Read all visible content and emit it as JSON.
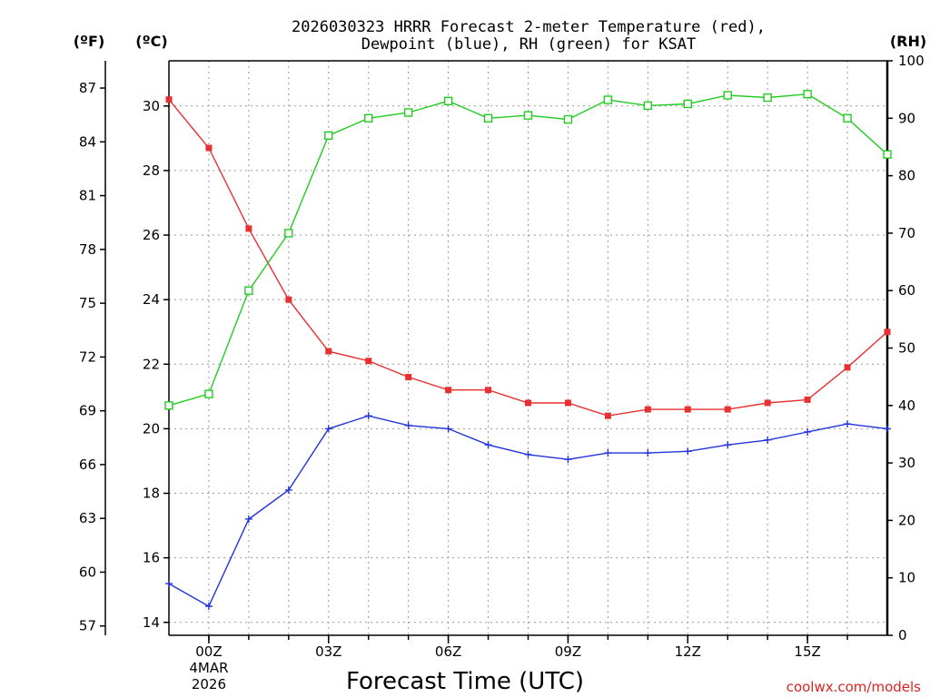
{
  "chart_data": {
    "type": "line",
    "title_line1": "2026030323 HRRR Forecast 2-meter Temperature (red),",
    "title_line2": "Dewpoint (blue), RH (green) for KSAT",
    "xlabel": "Forecast Time (UTC)",
    "credit": "coolwx.com/models",
    "unit_left_f": "(ºF)",
    "unit_left_c": "(ºC)",
    "unit_right": "(RH)",
    "x_hours": [
      23,
      0,
      1,
      2,
      3,
      4,
      5,
      6,
      7,
      8,
      9,
      10,
      11,
      12,
      13,
      14,
      15,
      16,
      17
    ],
    "x_ticks": [
      {
        "hour": 0,
        "label": "00Z",
        "sub1": "4MAR",
        "sub2": "2026"
      },
      {
        "hour": 3,
        "label": "03Z"
      },
      {
        "hour": 6,
        "label": "06Z"
      },
      {
        "hour": 9,
        "label": "09Z"
      },
      {
        "hour": 12,
        "label": "12Z"
      },
      {
        "hour": 15,
        "label": "15Z"
      }
    ],
    "ylim_c": [
      13.6,
      31.4
    ],
    "y_ticks_c": [
      14,
      16,
      18,
      20,
      22,
      24,
      26,
      28,
      30
    ],
    "y_ticks_f": [
      57,
      60,
      63,
      66,
      69,
      72,
      75,
      78,
      81,
      84,
      87
    ],
    "ylim_rh": [
      0,
      100
    ],
    "y_ticks_rh": [
      0,
      10,
      20,
      30,
      40,
      50,
      60,
      70,
      80,
      90,
      100
    ],
    "series": [
      {
        "name": "Temperature",
        "axis": "celsius",
        "color": "#e83030",
        "marker": "square-filled",
        "values": [
          30.2,
          28.7,
          26.2,
          24.0,
          22.4,
          22.1,
          21.6,
          21.2,
          21.2,
          20.8,
          20.8,
          20.4,
          20.6,
          20.6,
          20.6,
          20.8,
          20.9,
          21.9,
          23.0
        ]
      },
      {
        "name": "Dewpoint",
        "axis": "celsius",
        "color": "#2233dd",
        "marker": "plus",
        "values": [
          15.2,
          14.5,
          17.2,
          18.1,
          20.0,
          20.4,
          20.1,
          20.0,
          19.5,
          19.2,
          19.05,
          19.25,
          19.25,
          19.3,
          19.5,
          19.65,
          19.9,
          20.15,
          20.0
        ]
      },
      {
        "name": "RH",
        "axis": "rh",
        "color": "#22cc22",
        "marker": "square-open",
        "values": [
          40,
          42,
          60,
          70,
          87,
          90,
          91,
          93,
          90,
          90.5,
          89.8,
          93.2,
          92.2,
          92.5,
          94,
          93.6,
          94.2,
          90,
          83.7
        ]
      }
    ]
  }
}
